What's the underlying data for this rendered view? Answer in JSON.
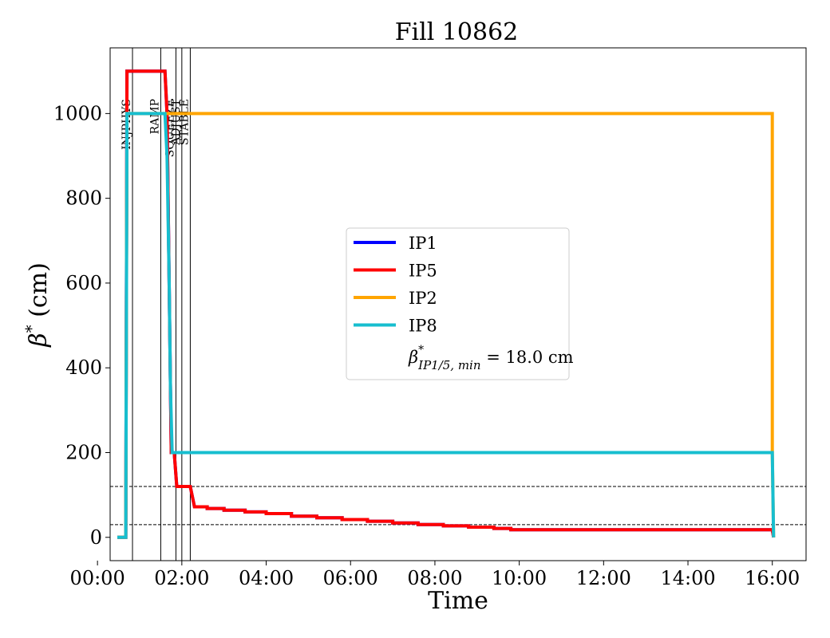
{
  "chart_data": {
    "type": "line",
    "title": "Fill 10862",
    "xlabel": "Time",
    "ylabel_symbol": "β",
    "ylabel_sup": "*",
    "ylabel_unit": " (cm)",
    "xlim": [
      0.3,
      16.8
    ],
    "ylim": [
      -55,
      1155
    ],
    "x_ticks": [
      0,
      2,
      4,
      6,
      8,
      10,
      12,
      14,
      16
    ],
    "x_tick_labels": [
      "00:00",
      "02:00",
      "04:00",
      "06:00",
      "08:00",
      "10:00",
      "12:00",
      "14:00",
      "16:00"
    ],
    "y_ticks": [
      0,
      200,
      400,
      600,
      800,
      1000
    ],
    "y_tick_labels": [
      "0",
      "200",
      "400",
      "600",
      "800",
      "1000"
    ],
    "grid": false,
    "legend_position": "center",
    "phases": [
      {
        "name": "INJPHYS",
        "x": 0.83
      },
      {
        "name": "RAMP",
        "x": 1.5
      },
      {
        "name": "SQUEEZE",
        "x": 1.86
      },
      {
        "name": "ADJUST",
        "x": 2.0
      },
      {
        "name": "STABLE",
        "x": 2.2
      }
    ],
    "reference_lines": [
      120,
      30
    ],
    "series": [
      {
        "name": "IP1",
        "color": "#0000ff",
        "points": [
          [
            0.47,
            0
          ],
          [
            0.67,
            0
          ],
          [
            0.7,
            1100
          ],
          [
            1.6,
            1100
          ],
          [
            1.65,
            1000
          ],
          [
            1.75,
            200
          ],
          [
            1.82,
            200
          ],
          [
            1.88,
            120
          ],
          [
            2.2,
            120
          ],
          [
            2.3,
            72
          ],
          [
            2.6,
            72
          ],
          [
            2.6,
            68
          ],
          [
            3.0,
            68
          ],
          [
            3.0,
            64
          ],
          [
            3.5,
            64
          ],
          [
            3.5,
            60
          ],
          [
            4.0,
            60
          ],
          [
            4.0,
            56
          ],
          [
            4.6,
            56
          ],
          [
            4.6,
            50
          ],
          [
            5.2,
            50
          ],
          [
            5.2,
            46
          ],
          [
            5.8,
            46
          ],
          [
            5.8,
            42
          ],
          [
            6.4,
            42
          ],
          [
            6.4,
            38
          ],
          [
            7.0,
            38
          ],
          [
            7.0,
            34
          ],
          [
            7.6,
            34
          ],
          [
            7.6,
            30
          ],
          [
            8.2,
            30
          ],
          [
            8.2,
            27
          ],
          [
            8.8,
            27
          ],
          [
            8.8,
            24
          ],
          [
            9.4,
            24
          ],
          [
            9.4,
            21
          ],
          [
            9.8,
            21
          ],
          [
            9.8,
            18
          ],
          [
            16.0,
            18
          ],
          [
            16.03,
            0
          ]
        ]
      },
      {
        "name": "IP5",
        "color": "#ff0000",
        "points": [
          [
            0.47,
            0
          ],
          [
            0.67,
            0
          ],
          [
            0.7,
            1100
          ],
          [
            1.6,
            1100
          ],
          [
            1.65,
            1000
          ],
          [
            1.75,
            200
          ],
          [
            1.82,
            200
          ],
          [
            1.88,
            120
          ],
          [
            2.2,
            120
          ],
          [
            2.3,
            72
          ],
          [
            2.6,
            72
          ],
          [
            2.6,
            68
          ],
          [
            3.0,
            68
          ],
          [
            3.0,
            64
          ],
          [
            3.5,
            64
          ],
          [
            3.5,
            60
          ],
          [
            4.0,
            60
          ],
          [
            4.0,
            56
          ],
          [
            4.6,
            56
          ],
          [
            4.6,
            50
          ],
          [
            5.2,
            50
          ],
          [
            5.2,
            46
          ],
          [
            5.8,
            46
          ],
          [
            5.8,
            42
          ],
          [
            6.4,
            42
          ],
          [
            6.4,
            38
          ],
          [
            7.0,
            38
          ],
          [
            7.0,
            34
          ],
          [
            7.6,
            34
          ],
          [
            7.6,
            30
          ],
          [
            8.2,
            30
          ],
          [
            8.2,
            27
          ],
          [
            8.8,
            27
          ],
          [
            8.8,
            24
          ],
          [
            9.4,
            24
          ],
          [
            9.4,
            21
          ],
          [
            9.8,
            21
          ],
          [
            9.8,
            18
          ],
          [
            16.0,
            18
          ],
          [
            16.03,
            0
          ]
        ]
      },
      {
        "name": "IP2",
        "color": "#ffa500",
        "points": [
          [
            0.47,
            0
          ],
          [
            0.67,
            0
          ],
          [
            0.7,
            1000
          ],
          [
            16.0,
            1000
          ],
          [
            16.0,
            200
          ],
          [
            16.03,
            0
          ]
        ]
      },
      {
        "name": "IP8",
        "color": "#17becf",
        "points": [
          [
            0.47,
            0
          ],
          [
            0.67,
            0
          ],
          [
            0.7,
            1000
          ],
          [
            1.6,
            1000
          ],
          [
            1.65,
            900
          ],
          [
            1.7,
            600
          ],
          [
            1.73,
            350
          ],
          [
            1.77,
            200
          ],
          [
            16.0,
            200
          ],
          [
            16.03,
            0
          ]
        ]
      }
    ],
    "legend_extra": {
      "symbol": "β",
      "sup": "*",
      "sub": "IP1/5, min",
      "value": " = 18.0 cm"
    }
  }
}
